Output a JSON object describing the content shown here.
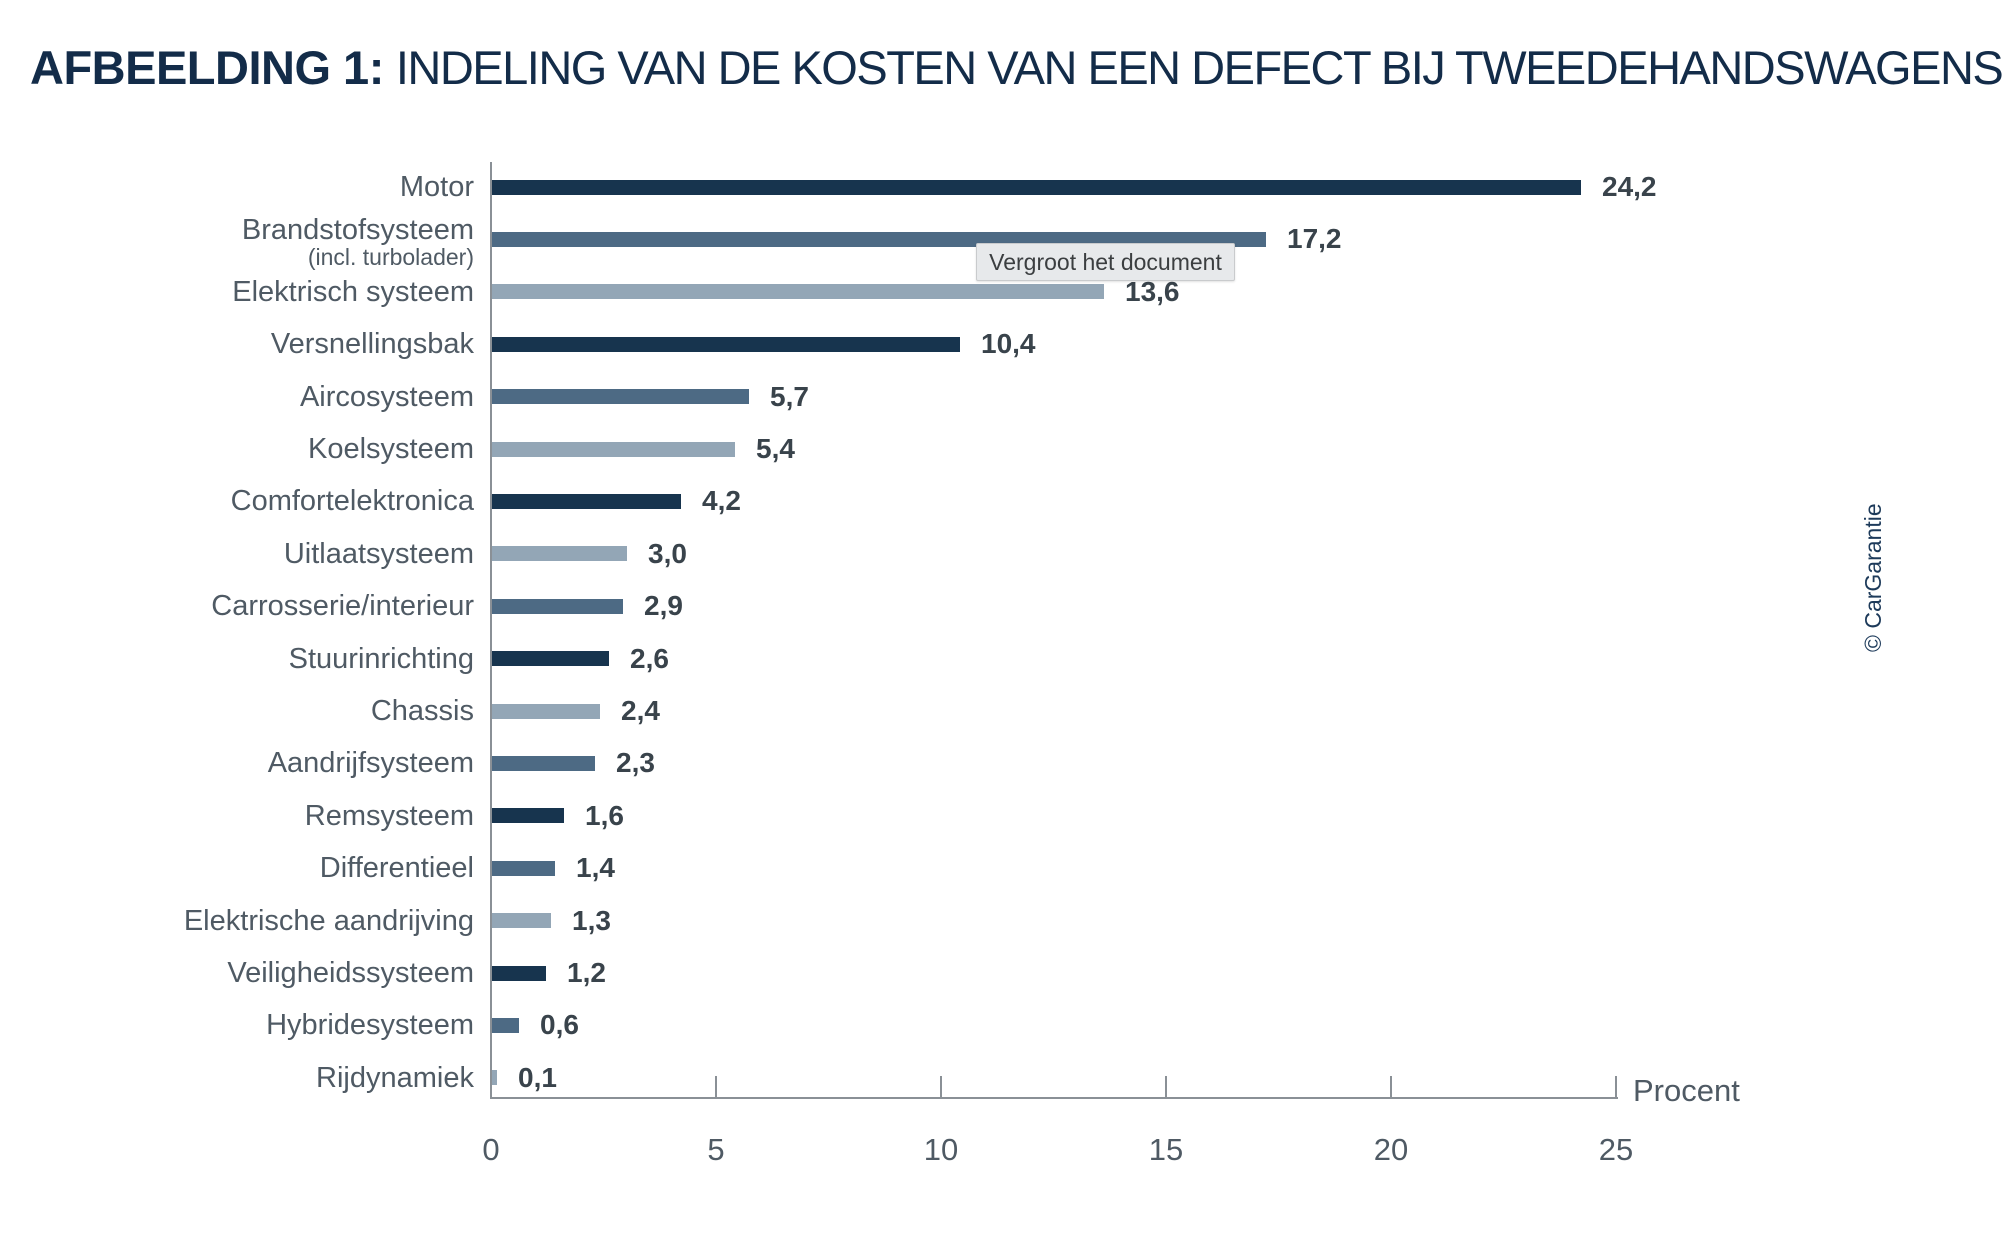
{
  "page": {
    "title_bold": "AFBEELDING 1:",
    "title_rest": "INDELING VAN DE KOSTEN VAN EEN DEFECT BIJ TWEEDEHANDSWAGENS",
    "tooltip": "Vergroot het document",
    "credit": "© CarGarantie"
  },
  "chart_data": {
    "type": "bar",
    "orientation": "horizontal",
    "title": "AFBEELDING 1: INDELING VAN DE KOSTEN VAN EEN DEFECT BIJ TWEEDEHANDSWAGENS",
    "xlabel": "Procent",
    "xlim": [
      0,
      25
    ],
    "x_ticks": [
      0,
      5,
      10,
      15,
      20,
      25
    ],
    "grid": false,
    "legend": false,
    "bar_colors": {
      "dark": "#17344e",
      "medium": "#4d6a84",
      "light": "#93a6b6"
    },
    "items": [
      {
        "label": "Motor",
        "sublabel": "",
        "value": 24.2,
        "display": "24,2",
        "color": "dark"
      },
      {
        "label": "Brandstofsysteem",
        "sublabel": "(incl. turbolader)",
        "value": 17.2,
        "display": "17,2",
        "color": "medium"
      },
      {
        "label": "Elektrisch systeem",
        "sublabel": "",
        "value": 13.6,
        "display": "13,6",
        "color": "light"
      },
      {
        "label": "Versnellingsbak",
        "sublabel": "",
        "value": 10.4,
        "display": "10,4",
        "color": "dark"
      },
      {
        "label": "Aircosysteem",
        "sublabel": "",
        "value": 5.7,
        "display": "5,7",
        "color": "medium"
      },
      {
        "label": "Koelsysteem",
        "sublabel": "",
        "value": 5.4,
        "display": "5,4",
        "color": "light"
      },
      {
        "label": "Comfortelektronica",
        "sublabel": "",
        "value": 4.2,
        "display": "4,2",
        "color": "dark"
      },
      {
        "label": "Uitlaatsysteem",
        "sublabel": "",
        "value": 3.0,
        "display": "3,0",
        "color": "light"
      },
      {
        "label": "Carrosserie/interieur",
        "sublabel": "",
        "value": 2.9,
        "display": "2,9",
        "color": "medium"
      },
      {
        "label": "Stuurinrichting",
        "sublabel": "",
        "value": 2.6,
        "display": "2,6",
        "color": "dark"
      },
      {
        "label": "Chassis",
        "sublabel": "",
        "value": 2.4,
        "display": "2,4",
        "color": "light"
      },
      {
        "label": "Aandrijfsysteem",
        "sublabel": "",
        "value": 2.3,
        "display": "2,3",
        "color": "medium"
      },
      {
        "label": "Remsysteem",
        "sublabel": "",
        "value": 1.6,
        "display": "1,6",
        "color": "dark"
      },
      {
        "label": "Differentieel",
        "sublabel": "",
        "value": 1.4,
        "display": "1,4",
        "color": "medium"
      },
      {
        "label": "Elektrische aandrijving",
        "sublabel": "",
        "value": 1.3,
        "display": "1,3",
        "color": "light"
      },
      {
        "label": "Veiligheidssysteem",
        "sublabel": "",
        "value": 1.2,
        "display": "1,2",
        "color": "dark"
      },
      {
        "label": "Hybridesysteem",
        "sublabel": "",
        "value": 0.6,
        "display": "0,6",
        "color": "medium"
      },
      {
        "label": "Rijdynamiek",
        "sublabel": "",
        "value": 0.1,
        "display": "0,1",
        "color": "light"
      }
    ]
  },
  "colors": {
    "title": "#132c49",
    "category_label": "#4f5a64",
    "value_label": "#39434b",
    "axis": "#8a9096",
    "background": "#ffffff",
    "tooltip_bg": "#e7e9eb",
    "tooltip_text": "#3b3e40",
    "credit": "#1d3a5a"
  }
}
